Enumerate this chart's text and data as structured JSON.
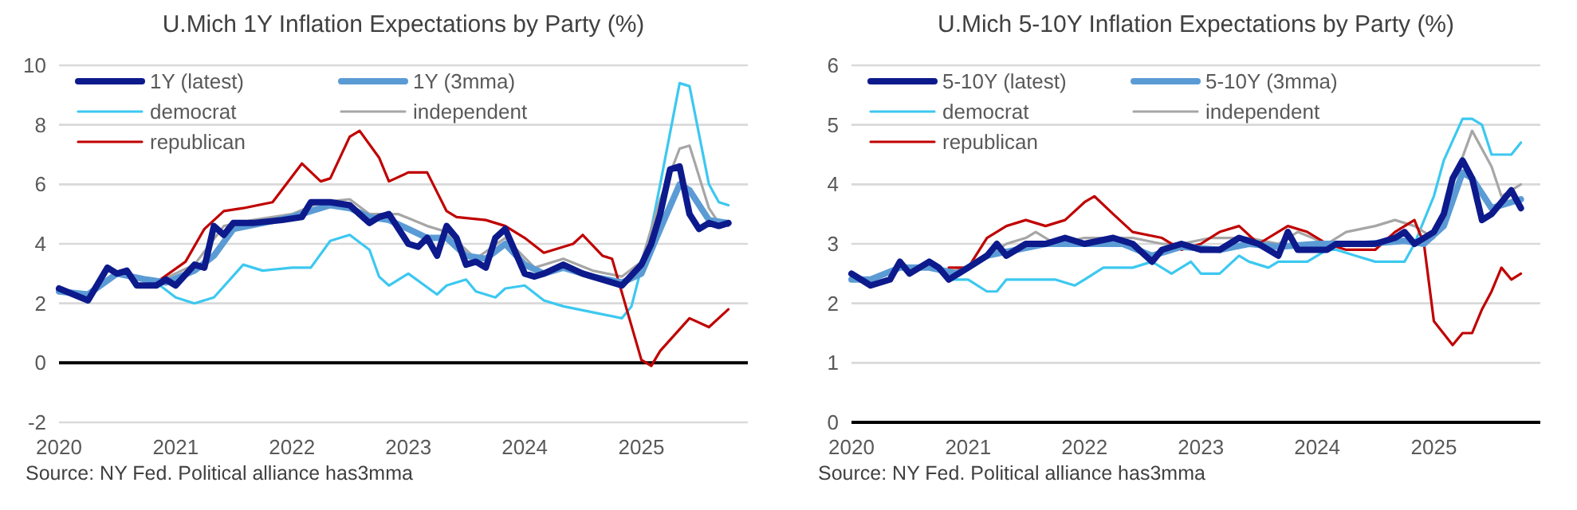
{
  "chart_data": [
    {
      "type": "line",
      "title": "U.Mich 1Y Inflation Expectations by Party (%)",
      "annotations": [
        "Source: NY Fed. Political alliance has3mma"
      ],
      "xlim": [
        "2020-01",
        "2025-12"
      ],
      "xticks": [
        "2020",
        "2021",
        "2022",
        "2023",
        "2024",
        "2025"
      ],
      "ylim": [
        -2,
        10
      ],
      "yticks": [
        -2,
        0,
        2,
        4,
        6,
        8,
        10
      ],
      "grid": "y",
      "legend": "top left",
      "series": [
        {
          "name": "democrat",
          "color": "#3cc8f0",
          "x": [
            "2020-11",
            "2021-01",
            "2021-03",
            "2021-05",
            "2021-08",
            "2021-10",
            "2022-01",
            "2022-03",
            "2022-05",
            "2022-07",
            "2022-09",
            "2022-10",
            "2022-11",
            "2023-01",
            "2023-04",
            "2023-05",
            "2023-07",
            "2023-08",
            "2023-10",
            "2023-11",
            "2024-01",
            "2024-03",
            "2024-05",
            "2024-08",
            "2024-11",
            "2024-12",
            "2025-02",
            "2025-03",
            "2025-05",
            "2025-06",
            "2025-08",
            "2025-09",
            "2025-10"
          ],
          "values": [
            2.7,
            2.2,
            2.0,
            2.2,
            3.3,
            3.1,
            3.2,
            3.2,
            4.1,
            4.3,
            3.8,
            2.9,
            2.6,
            3.0,
            2.3,
            2.6,
            2.8,
            2.4,
            2.2,
            2.5,
            2.6,
            2.1,
            1.9,
            1.7,
            1.5,
            1.9,
            4.5,
            6.0,
            9.4,
            9.3,
            6.0,
            5.4,
            5.3
          ]
        },
        {
          "name": "independent",
          "color": "#a6a6a6",
          "x": [
            "2020-11",
            "2021-03",
            "2021-06",
            "2021-09",
            "2022-01",
            "2022-04",
            "2022-07",
            "2022-09",
            "2022-12",
            "2023-03",
            "2023-05",
            "2023-08",
            "2023-11",
            "2024-02",
            "2024-05",
            "2024-08",
            "2024-11",
            "2025-01",
            "2025-03",
            "2025-05",
            "2025-06",
            "2025-08",
            "2025-09",
            "2025-10"
          ],
          "values": [
            2.7,
            3.3,
            4.6,
            4.8,
            5.0,
            5.4,
            5.5,
            5.0,
            5.0,
            4.6,
            4.4,
            3.5,
            4.2,
            3.2,
            3.5,
            3.1,
            2.9,
            3.4,
            5.5,
            7.2,
            7.3,
            5.2,
            4.7,
            4.6
          ]
        },
        {
          "name": "republican",
          "color": "#c00000",
          "x": [
            "2020-11",
            "2021-02",
            "2021-04",
            "2021-06",
            "2021-08",
            "2021-11",
            "2022-02",
            "2022-04",
            "2022-05",
            "2022-07",
            "2022-08",
            "2022-10",
            "2022-11",
            "2023-01",
            "2023-03",
            "2023-05",
            "2023-06",
            "2023-09",
            "2023-11",
            "2024-01",
            "2024-03",
            "2024-06",
            "2024-07",
            "2024-09",
            "2024-10",
            "2025-01",
            "2025-02",
            "2025-03",
            "2025-06",
            "2025-08",
            "2025-10"
          ],
          "values": [
            2.7,
            3.4,
            4.5,
            5.1,
            5.2,
            5.4,
            6.7,
            6.1,
            6.2,
            7.6,
            7.8,
            6.9,
            6.1,
            6.4,
            6.4,
            5.1,
            4.9,
            4.8,
            4.6,
            4.2,
            3.7,
            4.0,
            4.3,
            3.6,
            3.5,
            0.1,
            -0.1,
            0.4,
            1.5,
            1.2,
            1.8
          ]
        },
        {
          "name": "1Y (3mma)",
          "color": "#5b9bd5",
          "x": [
            "2020-01",
            "2020-04",
            "2020-07",
            "2020-10",
            "2020-12",
            "2021-03",
            "2021-05",
            "2021-07",
            "2021-10",
            "2022-01",
            "2022-03",
            "2022-05",
            "2022-07",
            "2022-09",
            "2022-11",
            "2023-01",
            "2023-03",
            "2023-05",
            "2023-07",
            "2023-09",
            "2023-11",
            "2024-01",
            "2024-03",
            "2024-05",
            "2024-08",
            "2024-11",
            "2025-01",
            "2025-03",
            "2025-05",
            "2025-06",
            "2025-08",
            "2025-10"
          ],
          "values": [
            2.4,
            2.3,
            3.0,
            2.8,
            2.7,
            3.1,
            3.6,
            4.5,
            4.7,
            4.9,
            5.1,
            5.3,
            5.2,
            4.9,
            4.8,
            4.5,
            4.2,
            4.2,
            3.6,
            3.5,
            4.0,
            3.3,
            3.0,
            3.2,
            2.9,
            2.7,
            3.0,
            4.5,
            6.0,
            5.8,
            4.8,
            4.7
          ]
        },
        {
          "name": "1Y (latest)",
          "color": "#0d1a8c",
          "x": [
            "2020-01",
            "2020-04",
            "2020-06",
            "2020-07",
            "2020-08",
            "2020-09",
            "2020-11",
            "2020-12",
            "2021-01",
            "2021-03",
            "2021-04",
            "2021-05",
            "2021-06",
            "2021-07",
            "2021-09",
            "2021-12",
            "2022-02",
            "2022-03",
            "2022-05",
            "2022-07",
            "2022-08",
            "2022-09",
            "2022-10",
            "2022-11",
            "2023-01",
            "2023-02",
            "2023-03",
            "2023-04",
            "2023-05",
            "2023-06",
            "2023-07",
            "2023-08",
            "2023-09",
            "2023-10",
            "2023-11",
            "2024-01",
            "2024-02",
            "2024-03",
            "2024-05",
            "2024-07",
            "2024-09",
            "2024-11",
            "2025-01",
            "2025-02",
            "2025-03",
            "2025-04",
            "2025-05",
            "2025-06",
            "2025-07",
            "2025-08",
            "2025-09",
            "2025-10"
          ],
          "values": [
            2.5,
            2.1,
            3.2,
            3.0,
            3.1,
            2.6,
            2.6,
            2.8,
            2.6,
            3.3,
            3.2,
            4.6,
            4.3,
            4.7,
            4.7,
            4.8,
            4.9,
            5.4,
            5.4,
            5.3,
            5.0,
            4.7,
            4.9,
            5.0,
            4.0,
            3.9,
            4.2,
            3.6,
            4.6,
            4.2,
            3.3,
            3.4,
            3.2,
            4.2,
            4.5,
            3.0,
            2.9,
            3.0,
            3.3,
            3.0,
            2.8,
            2.6,
            3.3,
            4.0,
            5.0,
            6.5,
            6.6,
            5.0,
            4.5,
            4.7,
            4.6,
            4.7
          ]
        }
      ]
    },
    {
      "type": "line",
      "title": "U.Mich 5-10Y Inflation Expectations by Party (%)",
      "annotations": [
        "Source: NY Fed. Political alliance has3mma"
      ],
      "xlim": [
        "2020-01",
        "2025-12"
      ],
      "xticks": [
        "2020",
        "2021",
        "2022",
        "2023",
        "2024",
        "2025"
      ],
      "ylim": [
        0,
        6
      ],
      "yticks": [
        0,
        1,
        2,
        3,
        4,
        5,
        6
      ],
      "grid": "y",
      "legend": "top left",
      "series": [
        {
          "name": "democrat",
          "color": "#3cc8f0",
          "x": [
            "2020-11",
            "2021-01",
            "2021-03",
            "2021-04",
            "2021-05",
            "2021-10",
            "2021-12",
            "2022-01",
            "2022-03",
            "2022-06",
            "2022-08",
            "2022-10",
            "2022-12",
            "2023-01",
            "2023-03",
            "2023-05",
            "2023-06",
            "2023-08",
            "2023-09",
            "2023-12",
            "2024-02",
            "2024-03",
            "2024-05",
            "2024-07",
            "2024-10",
            "2024-11",
            "2025-01",
            "2025-02",
            "2025-04",
            "2025-05",
            "2025-06",
            "2025-07",
            "2025-09",
            "2025-10"
          ],
          "values": [
            2.4,
            2.4,
            2.2,
            2.2,
            2.4,
            2.4,
            2.3,
            2.4,
            2.6,
            2.6,
            2.7,
            2.5,
            2.7,
            2.5,
            2.5,
            2.8,
            2.7,
            2.6,
            2.7,
            2.7,
            2.9,
            2.9,
            2.8,
            2.7,
            2.7,
            3.0,
            3.8,
            4.4,
            5.1,
            5.1,
            5.0,
            4.5,
            4.5,
            4.7
          ]
        },
        {
          "name": "independent",
          "color": "#a6a6a6",
          "x": [
            "2020-11",
            "2021-02",
            "2021-05",
            "2021-07",
            "2021-08",
            "2021-10",
            "2022-01",
            "2022-06",
            "2022-09",
            "2022-11",
            "2023-02",
            "2023-06",
            "2023-09",
            "2023-11",
            "2024-02",
            "2024-04",
            "2024-07",
            "2024-09",
            "2024-11",
            "2025-01",
            "2025-03",
            "2025-05",
            "2025-07",
            "2025-08",
            "2025-10"
          ],
          "values": [
            2.5,
            2.7,
            3.0,
            3.1,
            3.2,
            3.0,
            3.1,
            3.1,
            3.0,
            3.0,
            3.1,
            3.1,
            3.0,
            3.2,
            3.0,
            3.2,
            3.3,
            3.4,
            3.3,
            3.1,
            4.0,
            4.9,
            4.3,
            3.8,
            4.0
          ]
        },
        {
          "name": "republican",
          "color": "#c00000",
          "x": [
            "2020-11",
            "2021-01",
            "2021-03",
            "2021-05",
            "2021-07",
            "2021-09",
            "2021-11",
            "2022-01",
            "2022-02",
            "2022-04",
            "2022-06",
            "2022-09",
            "2022-11",
            "2023-01",
            "2023-03",
            "2023-05",
            "2023-07",
            "2023-10",
            "2023-12",
            "2024-02",
            "2024-04",
            "2024-07",
            "2024-09",
            "2024-11",
            "2024-12",
            "2025-01",
            "2025-03",
            "2025-04",
            "2025-05",
            "2025-06",
            "2025-07",
            "2025-08",
            "2025-09",
            "2025-10"
          ],
          "values": [
            2.6,
            2.6,
            3.1,
            3.3,
            3.4,
            3.3,
            3.4,
            3.7,
            3.8,
            3.5,
            3.2,
            3.1,
            2.9,
            3.0,
            3.2,
            3.3,
            3.0,
            3.3,
            3.2,
            3.0,
            2.9,
            2.9,
            3.2,
            3.4,
            3.0,
            1.7,
            1.3,
            1.5,
            1.5,
            1.9,
            2.2,
            2.6,
            2.4,
            2.5
          ]
        },
        {
          "name": "5-10Y (3mma)",
          "color": "#5b9bd5",
          "x": [
            "2020-01",
            "2020-03",
            "2020-06",
            "2020-09",
            "2020-12",
            "2021-03",
            "2021-06",
            "2021-09",
            "2022-01",
            "2022-05",
            "2022-08",
            "2022-11",
            "2023-03",
            "2023-06",
            "2023-09",
            "2024-01",
            "2024-06",
            "2024-10",
            "2024-12",
            "2025-02",
            "2025-04",
            "2025-05",
            "2025-07",
            "2025-09",
            "2025-10"
          ],
          "values": [
            2.4,
            2.4,
            2.6,
            2.6,
            2.5,
            2.8,
            2.9,
            3.0,
            3.0,
            3.0,
            2.8,
            2.95,
            2.9,
            3.0,
            2.95,
            3.0,
            3.0,
            3.05,
            3.0,
            3.3,
            4.2,
            4.1,
            3.6,
            3.7,
            3.75
          ]
        },
        {
          "name": "5-10Y (latest)",
          "color": "#0d1a8c",
          "x": [
            "2020-01",
            "2020-03",
            "2020-05",
            "2020-06",
            "2020-07",
            "2020-09",
            "2020-10",
            "2020-11",
            "2021-01",
            "2021-03",
            "2021-04",
            "2021-05",
            "2021-07",
            "2021-09",
            "2021-11",
            "2022-01",
            "2022-04",
            "2022-06",
            "2022-08",
            "2022-09",
            "2022-11",
            "2023-01",
            "2023-03",
            "2023-05",
            "2023-07",
            "2023-09",
            "2023-10",
            "2023-11",
            "2024-02",
            "2024-03",
            "2024-05",
            "2024-07",
            "2024-09",
            "2024-10",
            "2024-11",
            "2025-01",
            "2025-02",
            "2025-03",
            "2025-04",
            "2025-05",
            "2025-06",
            "2025-07",
            "2025-08",
            "2025-09",
            "2025-10"
          ],
          "values": [
            2.5,
            2.3,
            2.4,
            2.7,
            2.5,
            2.7,
            2.6,
            2.4,
            2.6,
            2.8,
            3.0,
            2.8,
            3.0,
            3.0,
            3.1,
            3.0,
            3.1,
            3.0,
            2.7,
            2.9,
            3.0,
            2.9,
            2.9,
            3.1,
            3.0,
            2.8,
            3.2,
            2.9,
            2.9,
            3.0,
            3.0,
            3.0,
            3.1,
            3.2,
            3.0,
            3.2,
            3.5,
            4.1,
            4.4,
            4.1,
            3.4,
            3.5,
            3.7,
            3.9,
            3.6
          ]
        }
      ]
    }
  ]
}
